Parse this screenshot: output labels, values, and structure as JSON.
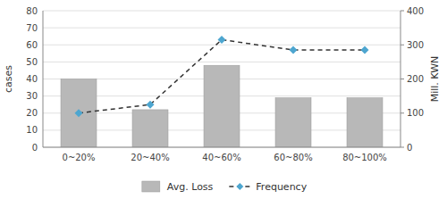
{
  "chart_data": {
    "type": "bar",
    "categories": [
      "0~20%",
      "20~40%",
      "40~60%",
      "60~80%",
      "80~100%"
    ],
    "series": [
      {
        "name": "Avg. Loss",
        "type": "bar",
        "color": "#b8b8b8",
        "values": [
          40,
          22,
          48,
          29,
          29
        ]
      },
      {
        "name": "Frequency",
        "type": "line",
        "color": "#4da6d0",
        "marker": "diamond",
        "line_style": "dashed",
        "axis": "y2",
        "values": [
          100,
          125,
          315,
          285,
          285
        ]
      }
    ],
    "ylabel": "cases",
    "y2label": "Mill. KWN",
    "ylim": [
      0,
      80
    ],
    "yticks": [
      0,
      10,
      20,
      30,
      40,
      50,
      60,
      70,
      80
    ],
    "y2lim": [
      0,
      400
    ],
    "y2ticks": [
      0,
      100,
      200,
      300,
      400
    ],
    "grid": true,
    "legend": "bottom"
  }
}
